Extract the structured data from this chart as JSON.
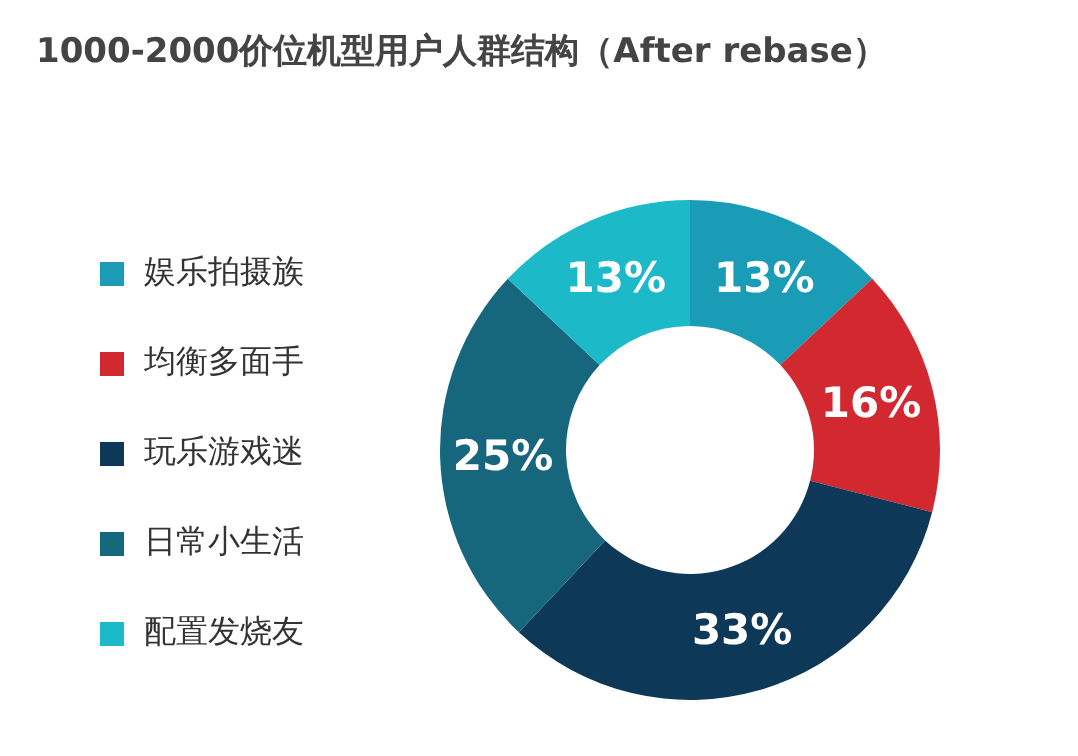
{
  "chart_data": {
    "type": "donut",
    "title": "1000-2000价位机型用户人群结构（After rebase）",
    "categories": [
      "娱乐拍摄族",
      "均衡多面手",
      "玩乐游戏迷",
      "日常小生活",
      "配置发烧友"
    ],
    "values": [
      13,
      16,
      33,
      25,
      13
    ],
    "colors": [
      "#1a9cb6",
      "#d2282f",
      "#0e3857",
      "#16677e",
      "#1cb9c9"
    ],
    "value_labels": [
      "13%",
      "16%",
      "33%",
      "25%",
      "13%"
    ],
    "legend": "left"
  }
}
